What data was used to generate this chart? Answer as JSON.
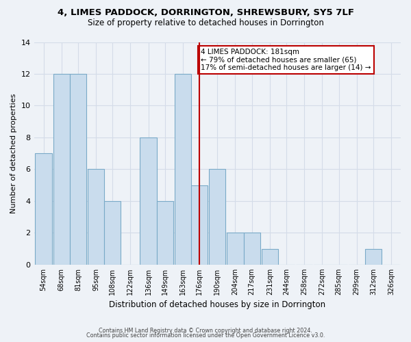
{
  "title": "4, LIMES PADDOCK, DORRINGTON, SHREWSBURY, SY5 7LF",
  "subtitle": "Size of property relative to detached houses in Dorrington",
  "xlabel": "Distribution of detached houses by size in Dorrington",
  "ylabel": "Number of detached properties",
  "bar_labels": [
    "54sqm",
    "68sqm",
    "81sqm",
    "95sqm",
    "108sqm",
    "122sqm",
    "136sqm",
    "149sqm",
    "163sqm",
    "176sqm",
    "190sqm",
    "204sqm",
    "217sqm",
    "231sqm",
    "244sqm",
    "258sqm",
    "272sqm",
    "285sqm",
    "299sqm",
    "312sqm",
    "326sqm"
  ],
  "bar_values": [
    7,
    12,
    12,
    6,
    4,
    0,
    8,
    4,
    12,
    5,
    6,
    2,
    2,
    1,
    0,
    0,
    0,
    0,
    0,
    1,
    0
  ],
  "bar_color": "#c9dced",
  "bar_edgecolor": "#7aaac8",
  "background_color": "#eef2f7",
  "grid_color": "#d4dce8",
  "annotation_text": "4 LIMES PADDOCK: 181sqm\n← 79% of detached houses are smaller (65)\n17% of semi-detached houses are larger (14) →",
  "annotation_box_edgecolor": "#bb0000",
  "annotation_box_facecolor": "#ffffff",
  "property_line_color": "#bb0000",
  "ylim": [
    0,
    14
  ],
  "bin_centers": [
    54,
    68,
    81,
    95,
    108,
    122,
    136,
    149,
    163,
    176,
    190,
    204,
    217,
    231,
    244,
    258,
    272,
    285,
    299,
    312,
    326
  ],
  "bin_width": 13,
  "property_line_index": 9,
  "footer_line1": "Contains HM Land Registry data © Crown copyright and database right 2024.",
  "footer_line2": "Contains public sector information licensed under the Open Government Licence v3.0."
}
